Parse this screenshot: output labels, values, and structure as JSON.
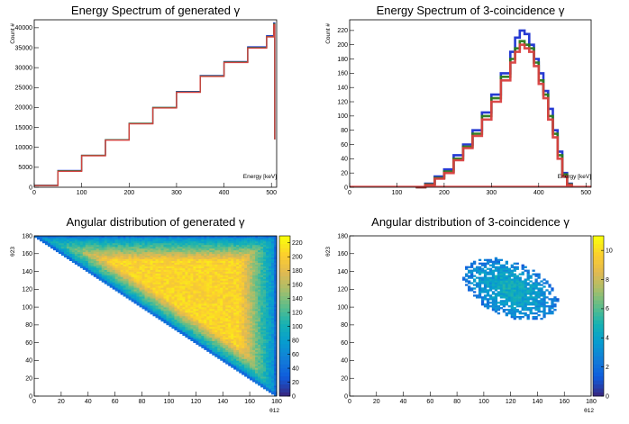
{
  "chart_data": [
    {
      "type": "histogram",
      "title": "Energy Spectrum of generated γ",
      "xlabel": "Energy [keV]",
      "ylabel": "Count #",
      "xlim": [
        0,
        511
      ],
      "ylim": [
        0,
        42000
      ],
      "xticks": [
        "0",
        "100",
        "200",
        "300",
        "400",
        "500"
      ],
      "yticks": [
        "0",
        "5000",
        "10000",
        "15000",
        "20000",
        "25000",
        "30000",
        "35000",
        "40000"
      ],
      "series": [
        {
          "color": "#1a2fd0",
          "x": [
            0,
            50,
            100,
            150,
            200,
            250,
            300,
            350,
            400,
            450,
            490,
            505,
            507
          ],
          "y": [
            500,
            4200,
            8000,
            11900,
            16000,
            20000,
            24000,
            28000,
            31500,
            35200,
            38000,
            41200,
            12000
          ]
        },
        {
          "color": "#2a7a1a",
          "x": [
            0,
            50,
            100,
            150,
            200,
            250,
            300,
            350,
            400,
            450,
            490,
            505,
            507
          ],
          "y": [
            450,
            4100,
            8000,
            11900,
            16000,
            20000,
            23900,
            27900,
            31400,
            35000,
            37800,
            41000,
            12000
          ]
        },
        {
          "color": "#d94040",
          "x": [
            0,
            50,
            100,
            150,
            200,
            250,
            300,
            350,
            400,
            450,
            490,
            505,
            507
          ],
          "y": [
            400,
            4000,
            7900,
            11800,
            15900,
            19900,
            23800,
            27800,
            31300,
            34900,
            37700,
            40800,
            12000
          ]
        }
      ]
    },
    {
      "type": "histogram",
      "title": "Energy Spectrum of 3-coincidence γ",
      "xlabel": "Energy [keV]",
      "ylabel": "Count #",
      "xlim": [
        0,
        511
      ],
      "ylim": [
        0,
        235
      ],
      "xticks": [
        "0",
        "100",
        "200",
        "300",
        "400",
        "500"
      ],
      "yticks": [
        "0",
        "20",
        "40",
        "60",
        "80",
        "100",
        "120",
        "140",
        "160",
        "180",
        "200",
        "220"
      ],
      "series": [
        {
          "color": "#1a2fd0",
          "x": [
            140,
            160,
            180,
            200,
            220,
            240,
            260,
            280,
            300,
            320,
            340,
            350,
            360,
            370,
            380,
            390,
            400,
            410,
            420,
            430,
            440,
            450,
            460,
            470
          ],
          "y": [
            0,
            5,
            15,
            25,
            45,
            60,
            80,
            105,
            130,
            160,
            190,
            210,
            220,
            215,
            200,
            180,
            160,
            135,
            110,
            80,
            50,
            20,
            5,
            0
          ]
        },
        {
          "color": "#2a7a1a",
          "x": [
            140,
            160,
            180,
            200,
            220,
            240,
            260,
            280,
            300,
            320,
            340,
            350,
            360,
            370,
            380,
            390,
            400,
            410,
            420,
            430,
            440,
            450,
            460,
            470
          ],
          "y": [
            0,
            4,
            13,
            22,
            40,
            57,
            75,
            100,
            125,
            155,
            180,
            195,
            205,
            200,
            195,
            175,
            150,
            130,
            100,
            75,
            45,
            18,
            4,
            0
          ]
        },
        {
          "color": "#d94040",
          "x": [
            140,
            160,
            180,
            200,
            220,
            240,
            260,
            280,
            300,
            320,
            340,
            350,
            360,
            370,
            380,
            390,
            400,
            410,
            420,
            430,
            440,
            450,
            460,
            470
          ],
          "y": [
            0,
            3,
            12,
            20,
            38,
            55,
            72,
            95,
            120,
            150,
            175,
            190,
            200,
            195,
            190,
            170,
            145,
            125,
            95,
            70,
            40,
            15,
            3,
            0
          ]
        }
      ]
    },
    {
      "type": "heatmap",
      "title": "Angular distribution of generated γ",
      "xlabel": "θ12",
      "ylabel": "θ23",
      "xlim": [
        0,
        180
      ],
      "ylim": [
        0,
        180
      ],
      "xticks": [
        "0",
        "20",
        "40",
        "60",
        "80",
        "100",
        "120",
        "140",
        "160",
        "180"
      ],
      "yticks": [
        "0",
        "20",
        "40",
        "60",
        "80",
        "100",
        "120",
        "140",
        "160",
        "180"
      ],
      "zlim": [
        0,
        230
      ],
      "zticks": [
        "0",
        "20",
        "40",
        "60",
        "80",
        "100",
        "120",
        "140",
        "160",
        "180",
        "200",
        "220"
      ],
      "region": "triangle: x + y >= 180, x <= 180, y <= 180",
      "peak": [
        120,
        120
      ],
      "peak_value": 220
    },
    {
      "type": "heatmap",
      "title": "Angular distribution of 3-coincidence γ",
      "xlabel": "θ12",
      "ylabel": "θ23",
      "xlim": [
        0,
        180
      ],
      "ylim": [
        0,
        180
      ],
      "xticks": [
        "0",
        "20",
        "40",
        "60",
        "80",
        "100",
        "120",
        "140",
        "160",
        "180"
      ],
      "yticks": [
        "0",
        "20",
        "40",
        "60",
        "80",
        "100",
        "120",
        "140",
        "160",
        "180"
      ],
      "zlim": [
        0,
        11
      ],
      "zticks": [
        "0",
        "2",
        "4",
        "6",
        "8",
        "10"
      ],
      "region": "ellipse centered at (120, 120), tilted along x = -y",
      "peak": [
        120,
        120
      ],
      "peak_value": 5
    }
  ]
}
